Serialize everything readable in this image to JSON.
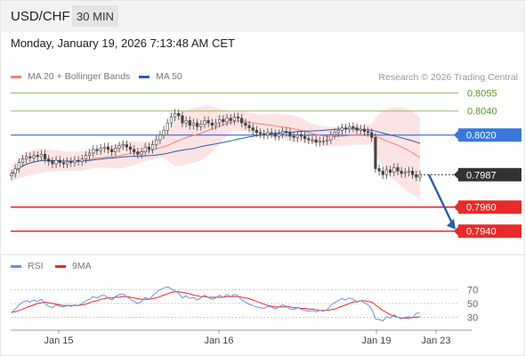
{
  "header": {
    "symbol": "USD/CHF",
    "timeframe": "30 MIN",
    "datetime": "Monday, January 19, 2026 7:13:48 AM CET"
  },
  "legend": {
    "ma20_label": "MA 20 + Bollinger Bands",
    "ma50_label": "MA 50",
    "credit": "Research © 2026 Trading Central",
    "rsi_label": "RSI",
    "ma9_label": "9MA"
  },
  "colors": {
    "ma20": "#f08080",
    "ma50": "#2b5ea8",
    "band_fill": "#fde4e4",
    "candle": "#444444",
    "resistance": "#8cc262",
    "pivot": "#3a78d8",
    "support": "#e52b2b",
    "current": "#333333",
    "forecast_arrow": "#2b5ea8",
    "rsi": "#6b8fe8",
    "ma9": "#e52b2b"
  },
  "chart_data": [
    {
      "type": "candlestick",
      "title": "USD/CHF 30 MIN",
      "x_tick_labels": [
        "Jan 15",
        "Jan 16",
        "Jan 19",
        "Jan 23"
      ],
      "y_range": [
        0.7925,
        0.8062
      ],
      "current_price": 0.7987,
      "levels": [
        {
          "value": 0.8055,
          "label": "0.8055",
          "kind": "resistance"
        },
        {
          "value": 0.804,
          "label": "0.8040",
          "kind": "resistance"
        },
        {
          "value": 0.802,
          "label": "0.8020",
          "kind": "pivot"
        },
        {
          "value": 0.7987,
          "label": "0.7987",
          "kind": "current"
        },
        {
          "value": 0.796,
          "label": "0.7960",
          "kind": "support"
        },
        {
          "value": 0.794,
          "label": "0.7940",
          "kind": "support"
        }
      ],
      "closes": [
        0.7988,
        0.7992,
        0.7997,
        0.8,
        0.8002,
        0.8001,
        0.8003,
        0.8002,
        0.8004,
        0.8,
        0.7998,
        0.7996,
        0.7999,
        0.7997,
        0.7996,
        0.7998,
        0.7997,
        0.7999,
        0.7998,
        0.8,
        0.8003,
        0.8005,
        0.8008,
        0.8007,
        0.8009,
        0.801,
        0.8008,
        0.8006,
        0.8009,
        0.8011,
        0.8012,
        0.801,
        0.8008,
        0.8006,
        0.8004,
        0.8006,
        0.801,
        0.8008,
        0.8012,
        0.8016,
        0.802,
        0.8024,
        0.803,
        0.8035,
        0.8038,
        0.8036,
        0.803,
        0.8032,
        0.8028,
        0.803,
        0.8027,
        0.8029,
        0.8032,
        0.803,
        0.8028,
        0.803,
        0.8033,
        0.8031,
        0.8034,
        0.8032,
        0.8035,
        0.8034,
        0.803,
        0.8028,
        0.8026,
        0.8024,
        0.8022,
        0.8021,
        0.802,
        0.8022,
        0.8021,
        0.8019,
        0.8021,
        0.8023,
        0.8022,
        0.8019,
        0.8018,
        0.802,
        0.8019,
        0.8017,
        0.8016,
        0.8016,
        0.8014,
        0.8015,
        0.8015,
        0.8016,
        0.802,
        0.8022,
        0.8024,
        0.8026,
        0.8025,
        0.8027,
        0.8026,
        0.8024,
        0.8025,
        0.8023,
        0.8022,
        0.8018,
        0.7992,
        0.799,
        0.7987,
        0.7991,
        0.7989,
        0.7993,
        0.799,
        0.7988,
        0.7989,
        0.799,
        0.7987,
        0.7985,
        0.7987
      ]
    },
    {
      "type": "line",
      "title": "RSI",
      "series": [
        {
          "name": "RSI"
        },
        {
          "name": "9MA"
        }
      ],
      "y_tick_labels": [
        70,
        50,
        30
      ],
      "y_range": [
        18,
        82
      ],
      "rsi": [
        36,
        42,
        48,
        52,
        54,
        52,
        55,
        53,
        56,
        50,
        46,
        44,
        48,
        46,
        45,
        47,
        46,
        48,
        47,
        50,
        54,
        56,
        60,
        58,
        61,
        62,
        58,
        55,
        60,
        63,
        64,
        60,
        56,
        53,
        50,
        53,
        59,
        56,
        61,
        66,
        70,
        72,
        74,
        71,
        68,
        65,
        58,
        61,
        57,
        59,
        55,
        58,
        62,
        59,
        56,
        58,
        62,
        59,
        63,
        60,
        63,
        61,
        55,
        52,
        49,
        47,
        45,
        44,
        43,
        46,
        45,
        42,
        45,
        48,
        46,
        42,
        41,
        44,
        42,
        40,
        39,
        40,
        38,
        40,
        39,
        41,
        48,
        51,
        54,
        57,
        55,
        58,
        56,
        52,
        54,
        51,
        48,
        42,
        28,
        27,
        25,
        31,
        29,
        34,
        30,
        28,
        30,
        31,
        29,
        36,
        36
      ],
      "ma9": [
        38,
        38,
        40,
        42,
        44,
        46,
        48,
        50,
        51,
        52,
        51,
        50,
        49,
        48,
        47,
        47,
        47,
        47,
        47,
        48,
        49,
        51,
        53,
        54,
        56,
        57,
        58,
        58,
        59,
        59,
        60,
        60,
        59,
        58,
        57,
        56,
        56,
        56,
        57,
        58,
        60,
        62,
        64,
        66,
        67,
        67,
        66,
        65,
        64,
        62,
        61,
        60,
        60,
        59,
        59,
        59,
        59,
        59,
        60,
        60,
        60,
        60,
        59,
        58,
        57,
        55,
        53,
        51,
        49,
        47,
        46,
        45,
        45,
        45,
        45,
        45,
        44,
        44,
        43,
        43,
        42,
        42,
        41,
        40,
        40,
        40,
        41,
        42,
        44,
        46,
        48,
        50,
        52,
        53,
        54,
        54,
        53,
        52,
        48,
        44,
        40,
        37,
        34,
        32,
        30,
        29,
        29,
        29,
        30,
        30,
        31
      ]
    }
  ]
}
